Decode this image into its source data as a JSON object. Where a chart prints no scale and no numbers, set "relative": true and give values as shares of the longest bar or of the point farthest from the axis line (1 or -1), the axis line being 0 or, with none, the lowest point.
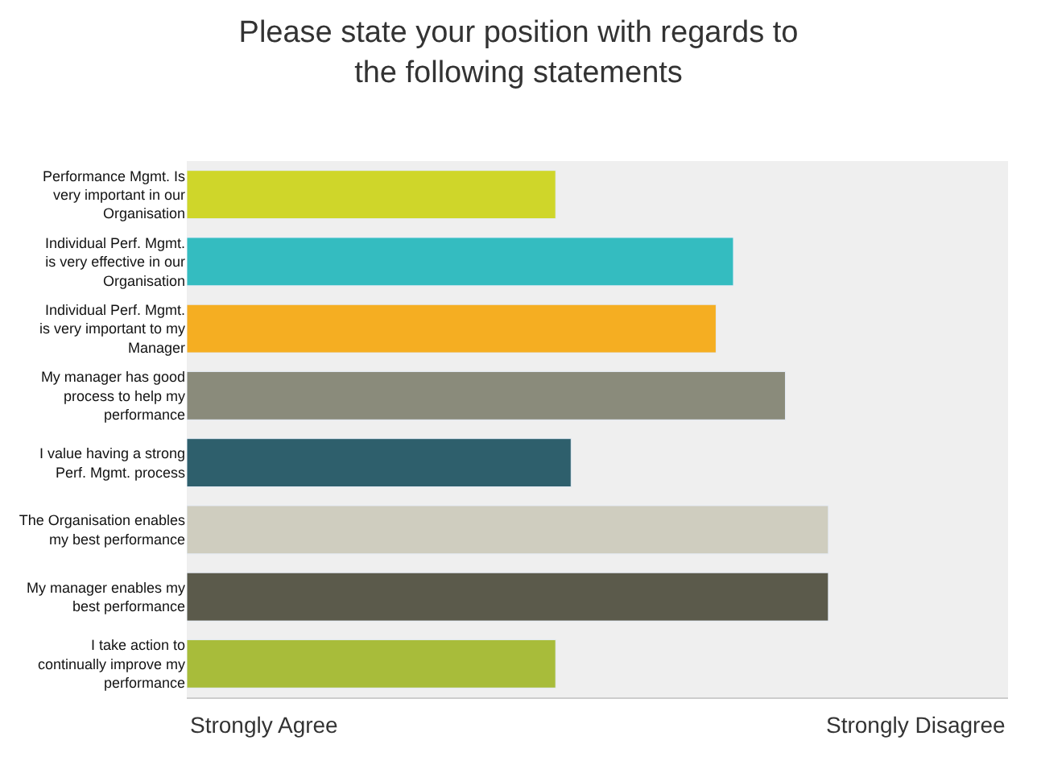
{
  "chart_data": {
    "type": "bar",
    "orientation": "horizontal",
    "relative": true,
    "title": "Please state your position with regards to the following statements",
    "categories": [
      "Performance Mgmt. Is very important in our Organisation",
      "Individual Perf. Mgmt. is very effective in our Organisation",
      "Individual Perf. Mgmt. is very important to my Manager",
      "My manager has good process to help my performance",
      "I value having a strong Perf. Mgmt. process",
      "The Organisation enables my best performance",
      "My manager enables my best performance",
      "I take action to continually improve my performance"
    ],
    "values": [
      0.575,
      0.852,
      0.825,
      0.933,
      0.599,
      1,
      1,
      0.575
    ],
    "colors": [
      "#cfd62a",
      "#34bcc0",
      "#f5ae22",
      "#8a8b7b",
      "#2e5f6c",
      "#cfcdbf",
      "#5b5a4b",
      "#a8bc3a"
    ],
    "annotations": [
      "Strongly Agree",
      "Strongly Disagree"
    ]
  }
}
